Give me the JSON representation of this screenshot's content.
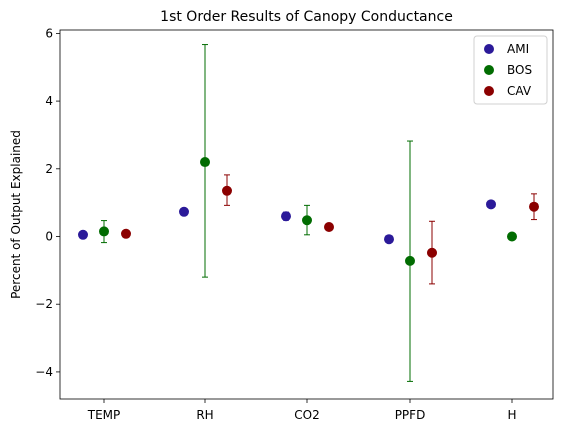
{
  "chart_data": {
    "type": "scatter",
    "title": "1st Order Results of Canopy Conductance",
    "xlabel": "",
    "ylabel": "Percent of Output Explained",
    "categories": [
      "TEMP",
      "RH",
      "CO2",
      "PPFD",
      "H"
    ],
    "ylim": [
      -4.8,
      6.1
    ],
    "yticks": [
      -4,
      -2,
      0,
      2,
      4,
      6
    ],
    "ytick_labels": [
      "−4",
      "−2",
      "0",
      "2",
      "4",
      "6"
    ],
    "grid": false,
    "legend_position": "top-right",
    "series": [
      {
        "name": "AMI",
        "color": "#2b1a99",
        "values": [
          0.05,
          0.73,
          0.6,
          -0.08,
          0.95
        ],
        "err_low": [
          0.05,
          0.73,
          0.48,
          -0.08,
          0.95
        ],
        "err_high": [
          0.05,
          0.73,
          0.72,
          -0.08,
          0.95
        ]
      },
      {
        "name": "BOS",
        "color": "#016c01",
        "values": [
          0.15,
          2.2,
          0.48,
          -0.72,
          0.0
        ],
        "err_low": [
          -0.18,
          -1.2,
          0.05,
          -4.28,
          0.0
        ],
        "err_high": [
          0.47,
          5.67,
          0.92,
          2.82,
          0.0
        ]
      },
      {
        "name": "CAV",
        "color": "#8b0000",
        "values": [
          0.08,
          1.35,
          0.28,
          -0.48,
          0.88
        ],
        "err_low": [
          0.08,
          0.92,
          0.28,
          -1.4,
          0.5
        ],
        "err_high": [
          0.08,
          1.82,
          0.28,
          0.45,
          1.26
        ]
      }
    ]
  }
}
